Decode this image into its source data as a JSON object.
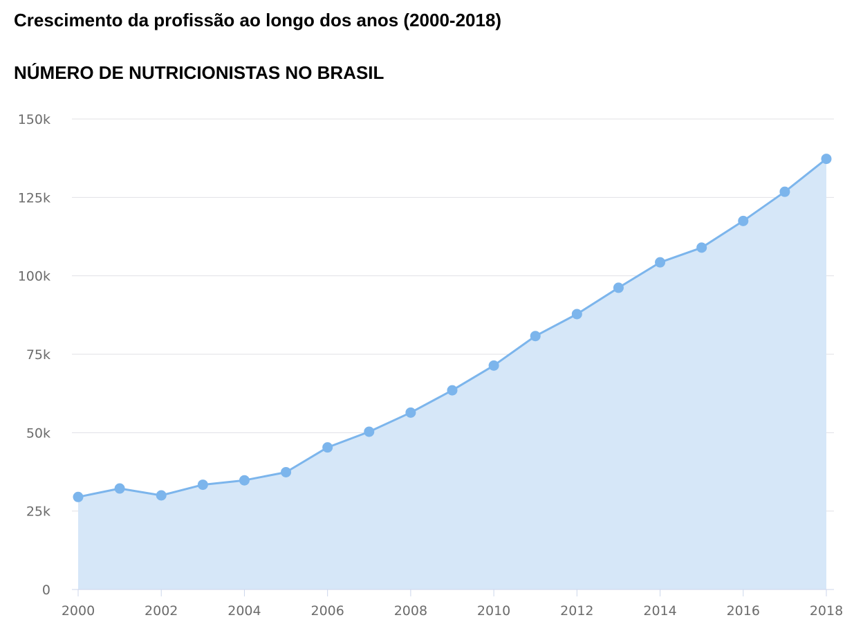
{
  "page_title": "Crescimento da profissão ao longo dos anos (2000-2018)",
  "chart_data": {
    "type": "area",
    "title": "NÚMERO DE NUTRICIONISTAS NO BRASIL",
    "xlabel": "",
    "ylabel": "",
    "x": [
      2000,
      2001,
      2002,
      2003,
      2004,
      2005,
      2006,
      2007,
      2008,
      2009,
      2010,
      2011,
      2012,
      2013,
      2014,
      2015,
      2016,
      2017,
      2018
    ],
    "series": [
      {
        "values": [
          29500,
          32200,
          30000,
          33400,
          34800,
          37400,
          45300,
          50300,
          56400,
          63500,
          71400,
          80800,
          87800,
          96200,
          104300,
          109000,
          117500,
          126800,
          137300
        ]
      }
    ],
    "xlim": [
      2000,
      2018
    ],
    "ylim": [
      0,
      150000
    ],
    "x_ticks": [
      "2000",
      "2002",
      "2004",
      "2006",
      "2008",
      "2010",
      "2012",
      "2014",
      "2016",
      "2018"
    ],
    "y_ticks": [
      "0",
      "25k",
      "50k",
      "75k",
      "100k",
      "125k",
      "150k"
    ],
    "grid": true,
    "legend": "none",
    "colors": {
      "line": "#7cb5ec",
      "fill": "#d6e7f8",
      "grid": "#e0e0e6",
      "axis": "#ccd6eb"
    }
  }
}
